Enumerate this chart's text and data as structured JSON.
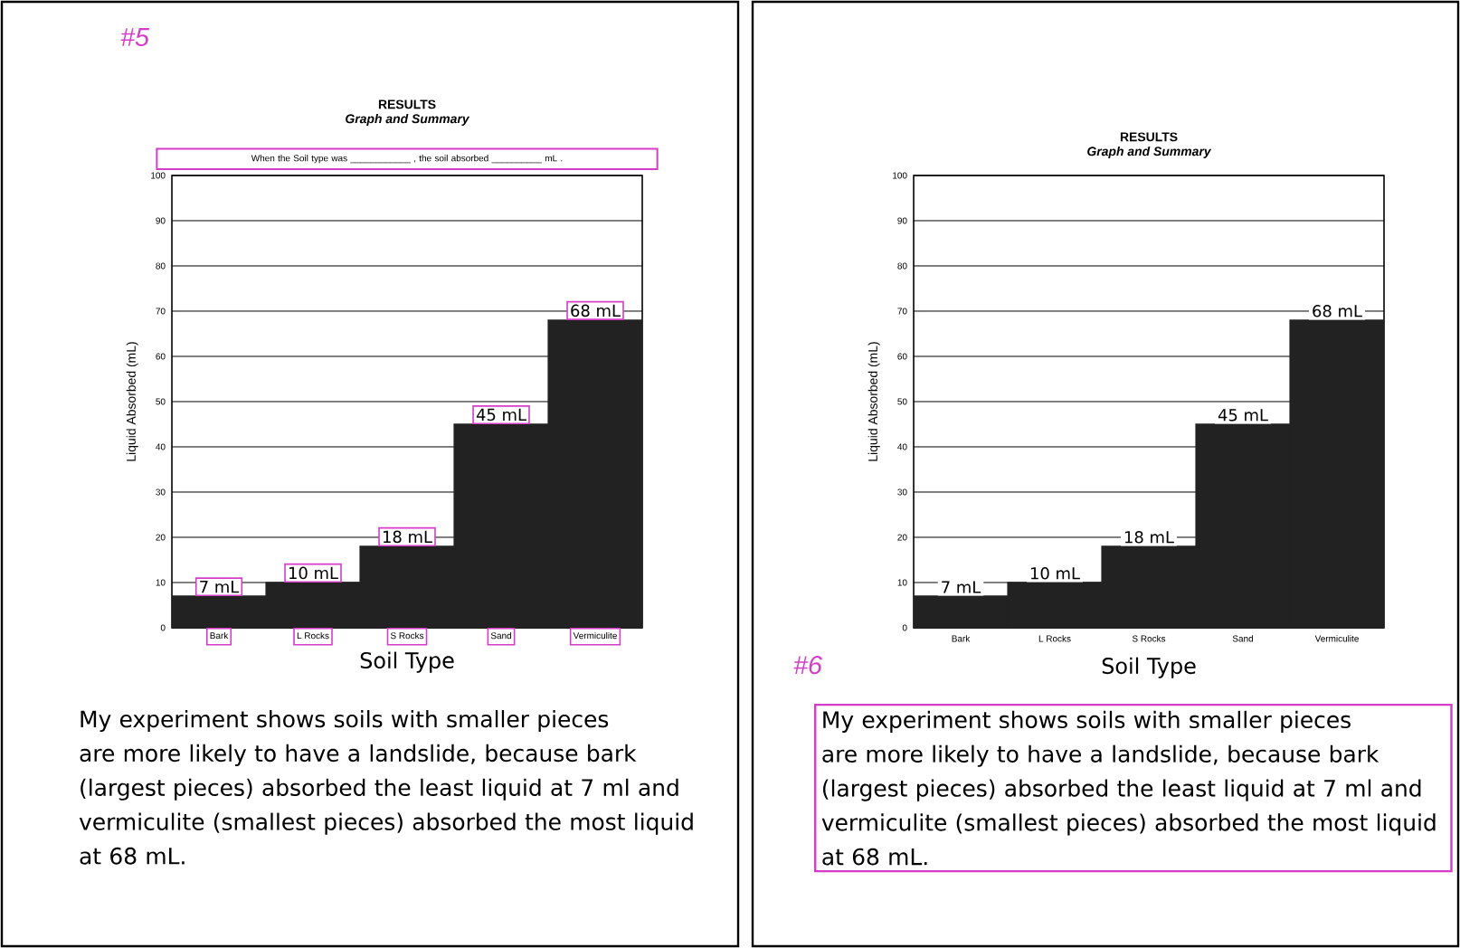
{
  "chart_data": [
    {
      "type": "bar",
      "title": "RESULTS",
      "subtitle": "Graph and Summary",
      "ylabel": "Liquid Absorbed (mL)",
      "xlabel": "Soil Type",
      "categories": [
        "Bark",
        "L Rocks",
        "S Rocks",
        "Sand",
        "Vermiculite"
      ],
      "values": [
        7,
        10,
        18,
        45,
        68
      ],
      "color": "#222222",
      "value_labels": [
        "7 mL",
        "10 mL",
        "18 mL",
        "45 mL",
        "68 mL"
      ],
      "ylim": [
        0,
        100
      ],
      "yticks": [
        0,
        10,
        20,
        30,
        40,
        50,
        60,
        70,
        80,
        90,
        100
      ],
      "grid": "y",
      "annotations": [
        "#5",
        "When the Soil type was ____________ , the soil absorbed __________ mL .",
        "My experiment shows soils with smaller pieces are more likely to have a landslide, because bark (largest pieces) absorbed the least liquid at 7 ml and vermiculite (smallest pieces) absorbed the most liquid at 68 mL."
      ]
    },
    {
      "type": "bar",
      "title": "RESULTS",
      "subtitle": "Graph and Summary",
      "ylabel": "Liquid Absorbed (mL)",
      "xlabel": "Soil Type",
      "categories": [
        "Bark",
        "L Rocks",
        "S Rocks",
        "Sand",
        "Vermiculite"
      ],
      "values": [
        7,
        10,
        18,
        45,
        68
      ],
      "color": "#222222",
      "value_labels": [
        "7 mL",
        "10 mL",
        "18 mL",
        "45 mL",
        "68 mL"
      ],
      "ylim": [
        0,
        100
      ],
      "yticks": [
        0,
        10,
        20,
        30,
        40,
        50,
        60,
        70,
        80,
        90,
        100
      ],
      "grid": "y",
      "annotations": [
        "#6",
        "My experiment shows soils with smaller pieces are more likely to have a landslide, because bark (largest pieces) absorbed the least liquid at 7 ml and vermiculite (smallest pieces) absorbed the most liquid at 68 mL."
      ]
    }
  ]
}
